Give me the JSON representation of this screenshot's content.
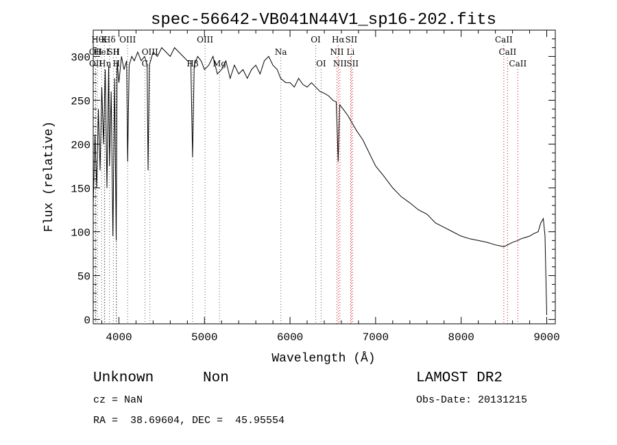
{
  "chart_data": {
    "type": "line",
    "title": "spec-56642-VB041N44V1_sp16-202.fits",
    "xlabel": "Wavelength (Å)",
    "ylabel": "Flux (relative)",
    "xlim": [
      3700,
      9100
    ],
    "ylim": [
      -5,
      330
    ],
    "x_ticks": [
      4000,
      5000,
      6000,
      7000,
      8000,
      9000
    ],
    "x_tick_labels": [
      "4000",
      "5000",
      "6000",
      "7000",
      "8000",
      "9000"
    ],
    "y_ticks": [
      0,
      50,
      100,
      150,
      200,
      250,
      300
    ],
    "y_tick_labels": [
      "0",
      "50",
      "100",
      "150",
      "200",
      "250",
      "300"
    ],
    "series": [
      {
        "name": "flux",
        "x": [
          3700,
          3720,
          3740,
          3760,
          3780,
          3800,
          3820,
          3840,
          3860,
          3880,
          3890,
          3910,
          3930,
          3950,
          3968,
          3980,
          4000,
          4030,
          4060,
          4090,
          4102,
          4120,
          4150,
          4180,
          4220,
          4260,
          4300,
          4330,
          4341,
          4355,
          4400,
          4450,
          4500,
          4550,
          4600,
          4650,
          4700,
          4750,
          4800,
          4840,
          4861,
          4880,
          4920,
          4960,
          5000,
          5050,
          5100,
          5150,
          5200,
          5250,
          5300,
          5350,
          5400,
          5450,
          5500,
          5550,
          5600,
          5650,
          5700,
          5750,
          5800,
          5850,
          5890,
          5950,
          6000,
          6050,
          6100,
          6150,
          6200,
          6250,
          6300,
          6350,
          6400,
          6450,
          6500,
          6540,
          6563,
          6580,
          6620,
          6680,
          6720,
          6780,
          6850,
          6900,
          6950,
          7000,
          7100,
          7200,
          7300,
          7400,
          7500,
          7600,
          7700,
          7800,
          7900,
          8000,
          8100,
          8200,
          8300,
          8400,
          8498,
          8542,
          8600,
          8662,
          8700,
          8800,
          8850,
          8900,
          8930,
          8960,
          8980,
          9000
        ],
        "y": [
          130,
          210,
          150,
          240,
          170,
          265,
          200,
          285,
          150,
          290,
          175,
          260,
          95,
          275,
          90,
          295,
          270,
          300,
          285,
          295,
          180,
          290,
          300,
          295,
          305,
          295,
          300,
          290,
          170,
          290,
          305,
          300,
          310,
          305,
          300,
          310,
          305,
          300,
          295,
          295,
          185,
          290,
          300,
          295,
          285,
          290,
          300,
          280,
          285,
          295,
          275,
          290,
          280,
          285,
          275,
          285,
          290,
          280,
          295,
          300,
          290,
          285,
          275,
          270,
          270,
          265,
          275,
          268,
          265,
          270,
          265,
          260,
          258,
          255,
          250,
          248,
          180,
          245,
          240,
          232,
          225,
          215,
          205,
          195,
          185,
          175,
          163,
          150,
          140,
          133,
          125,
          120,
          110,
          105,
          100,
          95,
          92,
          90,
          88,
          85,
          83,
          85,
          88,
          90,
          92,
          95,
          98,
          100,
          110,
          115,
          95,
          5
        ]
      }
    ],
    "line_markers": [
      {
        "label": "Hθ",
        "x": 3750,
        "row": 0,
        "color": "#555555"
      },
      {
        "label": "K",
        "x": 3830,
        "row": 0,
        "color": "#555555"
      },
      {
        "label": "Hδ",
        "x": 3890,
        "row": 0,
        "color": "#555555"
      },
      {
        "label": "OIII",
        "x": 4102,
        "row": 0,
        "color": "#555555"
      },
      {
        "label": "OIII",
        "x": 5007,
        "row": 0,
        "color": "#555555"
      },
      {
        "label": "OI",
        "x": 6300,
        "row": 0,
        "color": "#555555"
      },
      {
        "label": "Hα",
        "x": 6563,
        "row": 0,
        "color": "#cc0000"
      },
      {
        "label": "SII",
        "x": 6716,
        "row": 0,
        "color": "#cc0000"
      },
      {
        "label": "CaII",
        "x": 8498,
        "row": 0,
        "color": "#cc0000"
      },
      {
        "label": "OII",
        "x": 3727,
        "row": 1,
        "color": "#555555"
      },
      {
        "label": "HeI",
        "x": 3798,
        "row": 1,
        "color": "#555555"
      },
      {
        "label": "SII",
        "x": 3935,
        "row": 1,
        "color": "#555555"
      },
      {
        "label": "H",
        "x": 3970,
        "row": 1,
        "color": "#555555"
      },
      {
        "label": "OIII",
        "x": 4363,
        "row": 1,
        "color": "#555555"
      },
      {
        "label": "Na",
        "x": 5893,
        "row": 1,
        "color": "#555555"
      },
      {
        "label": "NII",
        "x": 6548,
        "row": 1,
        "color": "#cc0000"
      },
      {
        "label": "Li",
        "x": 6708,
        "row": 1,
        "color": "#cc0000"
      },
      {
        "label": "CaII",
        "x": 8542,
        "row": 1,
        "color": "#cc0000"
      },
      {
        "label": "OII",
        "x": 3729,
        "row": 2,
        "color": "#555555"
      },
      {
        "label": "Hη",
        "x": 3835,
        "row": 2,
        "color": "#555555"
      },
      {
        "label": "H",
        "x": 3970,
        "row": 2,
        "color": "#555555"
      },
      {
        "label": "G",
        "x": 4304,
        "row": 2,
        "color": "#555555"
      },
      {
        "label": "Hβ",
        "x": 4861,
        "row": 2,
        "color": "#555555"
      },
      {
        "label": "Mg",
        "x": 5175,
        "row": 2,
        "color": "#555555"
      },
      {
        "label": "OI",
        "x": 6363,
        "row": 2,
        "color": "#555555"
      },
      {
        "label": "NII",
        "x": 6583,
        "row": 2,
        "color": "#cc0000"
      },
      {
        "label": "SII",
        "x": 6731,
        "row": 2,
        "color": "#cc0000"
      },
      {
        "label": "CaII",
        "x": 8662,
        "row": 2,
        "color": "#cc0000"
      }
    ]
  },
  "info": {
    "class": "Unknown",
    "subclass": "Non",
    "survey": "LAMOST DR2",
    "cz": "cz = NaN",
    "obs_date": "Obs-Date: 20131215",
    "coords": "RA =  38.69604, DEC =  45.95554"
  }
}
